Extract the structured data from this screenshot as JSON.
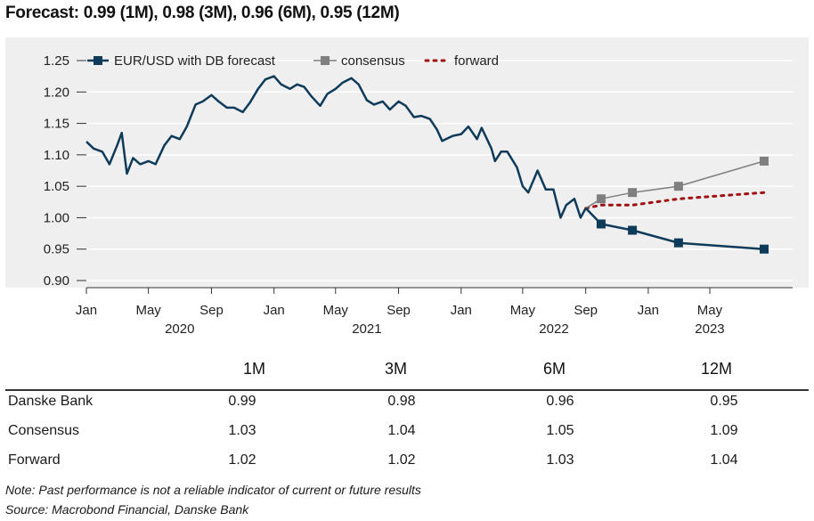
{
  "title": "Forecast: 0.99 (1M), 0.98 (3M), 0.96 (6M), 0.95 (12M)",
  "chart_data": {
    "type": "line",
    "title": "",
    "ylabel": "",
    "xlabel": "",
    "ylim": [
      0.88,
      1.27
    ],
    "xlim": [
      "2020-01-01",
      "2023-08-15"
    ],
    "yticks": [
      "0.90",
      "0.95",
      "1.00",
      "1.05",
      "1.10",
      "1.15",
      "1.20",
      "1.25"
    ],
    "ytick_values": [
      0.9,
      0.95,
      1.0,
      1.05,
      1.1,
      1.15,
      1.2,
      1.25
    ],
    "xticks": [
      {
        "date": "2020-01-01",
        "label": "Jan"
      },
      {
        "date": "2020-05-01",
        "label": "May"
      },
      {
        "date": "2020-09-01",
        "label": "Sep"
      },
      {
        "date": "2021-01-01",
        "label": "Jan"
      },
      {
        "date": "2021-05-01",
        "label": "May"
      },
      {
        "date": "2021-09-01",
        "label": "Sep"
      },
      {
        "date": "2022-01-01",
        "label": "Jan"
      },
      {
        "date": "2022-05-01",
        "label": "May"
      },
      {
        "date": "2022-09-01",
        "label": "Sep"
      },
      {
        "date": "2023-01-01",
        "label": "Jan"
      },
      {
        "date": "2023-05-01",
        "label": "May"
      }
    ],
    "year_labels": [
      {
        "date": "2020-07-01",
        "label": "2020"
      },
      {
        "date": "2021-07-01",
        "label": "2021"
      },
      {
        "date": "2022-07-01",
        "label": "2022"
      },
      {
        "date": "2023-05-01",
        "label": "2023"
      }
    ],
    "legend_position": "top-left",
    "grid": true,
    "series": [
      {
        "name": "EUR/USD with DB forecast",
        "color": "#0f3b5a",
        "style": "solid",
        "history": [
          [
            "2020-01-01",
            1.121
          ],
          [
            "2020-01-15",
            1.11
          ],
          [
            "2020-02-01",
            1.105
          ],
          [
            "2020-02-15",
            1.085
          ],
          [
            "2020-03-01",
            1.115
          ],
          [
            "2020-03-10",
            1.135
          ],
          [
            "2020-03-20",
            1.07
          ],
          [
            "2020-04-01",
            1.095
          ],
          [
            "2020-04-15",
            1.085
          ],
          [
            "2020-05-01",
            1.09
          ],
          [
            "2020-05-15",
            1.085
          ],
          [
            "2020-06-01",
            1.115
          ],
          [
            "2020-06-15",
            1.13
          ],
          [
            "2020-07-01",
            1.125
          ],
          [
            "2020-07-15",
            1.145
          ],
          [
            "2020-08-01",
            1.18
          ],
          [
            "2020-08-15",
            1.185
          ],
          [
            "2020-09-01",
            1.195
          ],
          [
            "2020-09-15",
            1.185
          ],
          [
            "2020-10-01",
            1.175
          ],
          [
            "2020-10-15",
            1.175
          ],
          [
            "2020-11-01",
            1.168
          ],
          [
            "2020-11-15",
            1.183
          ],
          [
            "2020-12-01",
            1.205
          ],
          [
            "2020-12-15",
            1.22
          ],
          [
            "2021-01-01",
            1.225
          ],
          [
            "2021-01-15",
            1.212
          ],
          [
            "2021-02-01",
            1.205
          ],
          [
            "2021-02-15",
            1.212
          ],
          [
            "2021-03-01",
            1.208
          ],
          [
            "2021-03-15",
            1.193
          ],
          [
            "2021-04-01",
            1.178
          ],
          [
            "2021-04-15",
            1.197
          ],
          [
            "2021-05-01",
            1.205
          ],
          [
            "2021-05-15",
            1.215
          ],
          [
            "2021-06-01",
            1.222
          ],
          [
            "2021-06-15",
            1.212
          ],
          [
            "2021-07-01",
            1.187
          ],
          [
            "2021-07-15",
            1.18
          ],
          [
            "2021-08-01",
            1.185
          ],
          [
            "2021-08-15",
            1.172
          ],
          [
            "2021-09-01",
            1.185
          ],
          [
            "2021-09-15",
            1.178
          ],
          [
            "2021-10-01",
            1.16
          ],
          [
            "2021-10-15",
            1.162
          ],
          [
            "2021-11-01",
            1.157
          ],
          [
            "2021-11-15",
            1.14
          ],
          [
            "2021-11-25",
            1.122
          ],
          [
            "2021-12-15",
            1.13
          ],
          [
            "2022-01-01",
            1.133
          ],
          [
            "2022-01-15",
            1.145
          ],
          [
            "2022-02-01",
            1.125
          ],
          [
            "2022-02-10",
            1.143
          ],
          [
            "2022-03-01",
            1.11
          ],
          [
            "2022-03-08",
            1.09
          ],
          [
            "2022-03-20",
            1.105
          ],
          [
            "2022-04-01",
            1.105
          ],
          [
            "2022-04-20",
            1.08
          ],
          [
            "2022-05-01",
            1.05
          ],
          [
            "2022-05-12",
            1.04
          ],
          [
            "2022-05-30",
            1.075
          ],
          [
            "2022-06-15",
            1.045
          ],
          [
            "2022-06-30",
            1.045
          ],
          [
            "2022-07-14",
            1.0
          ],
          [
            "2022-07-25",
            1.02
          ],
          [
            "2022-08-10",
            1.03
          ],
          [
            "2022-08-22",
            1.0
          ],
          [
            "2022-09-01",
            1.015
          ]
        ],
        "forecast": [
          [
            "2022-09-01",
            1.015
          ],
          [
            "2022-10-01",
            0.99
          ],
          [
            "2022-12-01",
            0.98
          ],
          [
            "2023-03-01",
            0.96
          ],
          [
            "2023-08-15",
            0.95
          ]
        ]
      },
      {
        "name": "consensus",
        "color": "#7f7f7f",
        "style": "solid",
        "points": [
          [
            "2022-09-01",
            1.015
          ],
          [
            "2022-10-01",
            1.03
          ],
          [
            "2022-12-01",
            1.04
          ],
          [
            "2023-03-01",
            1.05
          ],
          [
            "2023-08-15",
            1.09
          ]
        ]
      },
      {
        "name": "forward",
        "color": "#a01010",
        "style": "dotted",
        "points": [
          [
            "2022-09-01",
            1.015
          ],
          [
            "2022-10-01",
            1.02
          ],
          [
            "2022-12-01",
            1.02
          ],
          [
            "2023-03-01",
            1.03
          ],
          [
            "2023-08-15",
            1.04
          ]
        ]
      }
    ]
  },
  "table": {
    "columns": [
      "1M",
      "3M",
      "6M",
      "12M"
    ],
    "rows": [
      {
        "label": "Danske Bank",
        "values": [
          "0.99",
          "0.98",
          "0.96",
          "0.95"
        ]
      },
      {
        "label": "Consensus",
        "values": [
          "1.03",
          "1.04",
          "1.05",
          "1.09"
        ]
      },
      {
        "label": "Forward",
        "values": [
          "1.02",
          "1.02",
          "1.03",
          "1.04"
        ]
      }
    ]
  },
  "notes": {
    "disclaimer": "Note: Past performance is not a reliable indicator of current or future results",
    "source": "Source: Macrobond Financial, Danske Bank"
  }
}
